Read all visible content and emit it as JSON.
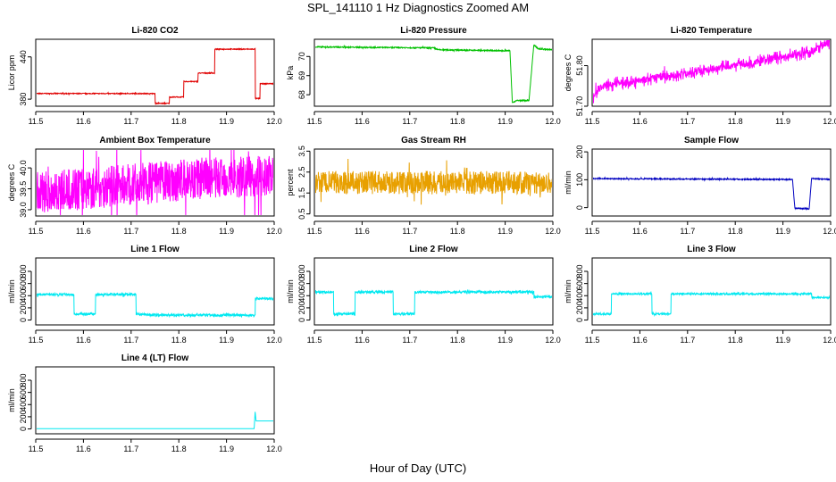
{
  "page": {
    "title": "SPL_141110  1 Hz Diagnostics Zoomed AM",
    "xlabel": "Hour of Day (UTC)"
  },
  "chart_data": [
    {
      "type": "line",
      "title": "Li-820 CO2",
      "ylabel": "Licor ppm",
      "xlim": [
        11.5,
        12.0
      ],
      "ylim": [
        370,
        465
      ],
      "x_ticks": [
        "11.5",
        "11.6",
        "11.7",
        "11.8",
        "11.9",
        "12.0"
      ],
      "y_ticks": [
        {
          "v": 380,
          "t": "380"
        },
        {
          "v": 440,
          "t": "440"
        }
      ],
      "color": "#e00000",
      "noise": 0.6,
      "series": [
        {
          "x": [
            11.5,
            11.75,
            11.75,
            11.78,
            11.78,
            11.81,
            11.81,
            11.84,
            11.84,
            11.875,
            11.875,
            11.96,
            11.96,
            11.97,
            11.97,
            12.0
          ],
          "y": [
            388,
            388,
            374,
            374,
            383,
            383,
            405,
            405,
            417,
            417,
            451,
            451,
            381,
            381,
            402,
            402
          ]
        }
      ]
    },
    {
      "type": "line",
      "title": "Li-820 Pressure",
      "ylabel": "kPa",
      "xlim": [
        11.5,
        12.0
      ],
      "ylim": [
        67.4,
        70.9
      ],
      "x_ticks": [
        "11.5",
        "11.6",
        "11.7",
        "11.8",
        "11.9",
        "12.0"
      ],
      "y_ticks": [
        {
          "v": 68,
          "t": "68"
        },
        {
          "v": 69,
          "t": "69"
        },
        {
          "v": 70,
          "t": "70"
        }
      ],
      "color": "#00c000",
      "noise": 0.03,
      "series": [
        {
          "x": [
            11.5,
            11.75,
            11.76,
            11.91,
            11.915,
            11.925,
            11.95,
            11.96,
            11.97,
            12.0
          ],
          "y": [
            70.5,
            70.45,
            70.35,
            70.3,
            67.6,
            67.7,
            67.7,
            70.6,
            70.4,
            70.35
          ]
        }
      ]
    },
    {
      "type": "line",
      "title": "Li-820 Temperature",
      "ylabel": "degrees C",
      "xlim": [
        11.5,
        12.0
      ],
      "ylim": [
        51.7,
        51.865
      ],
      "x_ticks": [
        "11.5",
        "11.6",
        "11.7",
        "11.8",
        "11.9",
        "12.0"
      ],
      "y_ticks": [
        {
          "v": 51.7,
          "t": "51.70"
        },
        {
          "v": 51.8,
          "t": "51.80"
        }
      ],
      "color": "#ff00ff",
      "noise": 0.008,
      "step": true,
      "series": [
        {
          "x": [
            11.5,
            11.52,
            11.63,
            11.75,
            11.87,
            11.96,
            12.0
          ],
          "y": [
            51.72,
            51.75,
            51.77,
            51.79,
            51.815,
            51.835,
            51.86
          ]
        }
      ]
    },
    {
      "type": "line",
      "title": "Ambient Box Temperature",
      "ylabel": "degrees C",
      "xlim": [
        11.5,
        12.0
      ],
      "ylim": [
        38.85,
        40.45
      ],
      "x_ticks": [
        "11.5",
        "11.6",
        "11.7",
        "11.8",
        "11.9",
        "12.0"
      ],
      "y_ticks": [
        {
          "v": 39.0,
          "t": "39.0"
        },
        {
          "v": 39.5,
          "t": "39.5"
        },
        {
          "v": 40.0,
          "t": "40.0"
        }
      ],
      "color": "#ff00ff",
      "noise": 0.5,
      "series": [
        {
          "x": [
            11.5,
            11.7,
            11.85,
            12.0
          ],
          "y": [
            39.4,
            39.6,
            39.75,
            39.8
          ]
        }
      ]
    },
    {
      "type": "line",
      "title": "Gas Stream RH",
      "ylabel": "percent",
      "xlim": [
        11.5,
        12.0
      ],
      "ylim": [
        0.4,
        3.6
      ],
      "x_ticks": [
        "11.5",
        "11.6",
        "11.7",
        "11.8",
        "11.9",
        "12.0"
      ],
      "y_ticks": [
        {
          "v": 0.5,
          "t": "0.5"
        },
        {
          "v": 1.5,
          "t": "1.5"
        },
        {
          "v": 2.5,
          "t": "2.5"
        },
        {
          "v": 3.5,
          "t": "3.5"
        }
      ],
      "color": "#e8a000",
      "noise": 0.55,
      "series": [
        {
          "x": [
            11.5,
            12.0
          ],
          "y": [
            2.0,
            2.0
          ]
        }
      ]
    },
    {
      "type": "line",
      "title": "Sample Flow",
      "ylabel": "ml/min",
      "xlim": [
        11.5,
        12.0
      ],
      "ylim": [
        -30,
        210
      ],
      "x_ticks": [
        "11.5",
        "11.6",
        "11.7",
        "11.8",
        "11.9",
        "12.0"
      ],
      "y_ticks": [
        {
          "v": 0,
          "t": "0"
        },
        {
          "v": 100,
          "t": "100"
        },
        {
          "v": 200,
          "t": "200"
        }
      ],
      "color": "#0000c0",
      "noise": 2,
      "series": [
        {
          "x": [
            11.5,
            11.92,
            11.925,
            11.955,
            11.96,
            12.0
          ],
          "y": [
            104,
            101,
            -2,
            -4,
            104,
            101
          ]
        }
      ]
    },
    {
      "type": "line",
      "title": "Line 1 Flow",
      "ylabel": "ml/min",
      "xlim": [
        11.5,
        12.0
      ],
      "ylim": [
        -80,
        1020
      ],
      "x_ticks": [
        "11.5",
        "11.6",
        "11.7",
        "11.8",
        "11.9",
        "12.0"
      ],
      "y_ticks": [
        {
          "v": 0,
          "t": "0"
        },
        {
          "v": 200,
          "t": "200"
        },
        {
          "v": 400,
          "t": "400"
        },
        {
          "v": 600,
          "t": "600"
        },
        {
          "v": 800,
          "t": "800"
        }
      ],
      "color": "#00e8f0",
      "noise": 20,
      "series": [
        {
          "x": [
            11.5,
            11.58,
            11.58,
            11.625,
            11.625,
            11.71,
            11.71,
            11.75,
            11.96,
            11.96,
            12.0
          ],
          "y": [
            420,
            420,
            100,
            100,
            420,
            420,
            100,
            80,
            80,
            350,
            360
          ]
        }
      ]
    },
    {
      "type": "line",
      "title": "Line 2 Flow",
      "ylabel": "ml/min",
      "xlim": [
        11.5,
        12.0
      ],
      "ylim": [
        -80,
        1020
      ],
      "x_ticks": [
        "11.5",
        "11.6",
        "11.7",
        "11.8",
        "11.9",
        "12.0"
      ],
      "y_ticks": [
        {
          "v": 0,
          "t": "0"
        },
        {
          "v": 200,
          "t": "200"
        },
        {
          "v": 400,
          "t": "400"
        },
        {
          "v": 600,
          "t": "600"
        },
        {
          "v": 800,
          "t": "800"
        }
      ],
      "color": "#00e8f0",
      "noise": 20,
      "series": [
        {
          "x": [
            11.5,
            11.54,
            11.54,
            11.585,
            11.585,
            11.665,
            11.665,
            11.71,
            11.71,
            11.96,
            11.96,
            12.0
          ],
          "y": [
            460,
            460,
            100,
            100,
            460,
            460,
            100,
            100,
            460,
            460,
            380,
            380
          ]
        }
      ]
    },
    {
      "type": "line",
      "title": "Line 3 Flow",
      "ylabel": "ml/min",
      "xlim": [
        11.5,
        12.0
      ],
      "ylim": [
        -80,
        1020
      ],
      "x_ticks": [
        "11.5",
        "11.6",
        "11.7",
        "11.8",
        "11.9",
        "12.0"
      ],
      "y_ticks": [
        {
          "v": 0,
          "t": "0"
        },
        {
          "v": 200,
          "t": "200"
        },
        {
          "v": 400,
          "t": "400"
        },
        {
          "v": 600,
          "t": "600"
        },
        {
          "v": 800,
          "t": "800"
        }
      ],
      "color": "#00e8f0",
      "noise": 15,
      "series": [
        {
          "x": [
            11.5,
            11.54,
            11.54,
            11.625,
            11.625,
            11.665,
            11.665,
            11.96,
            11.96,
            12.0
          ],
          "y": [
            100,
            100,
            430,
            430,
            100,
            100,
            430,
            430,
            370,
            370
          ]
        }
      ]
    },
    {
      "type": "line",
      "title": "Line 4 (LT) Flow",
      "ylabel": "ml/min",
      "xlim": [
        11.5,
        12.0
      ],
      "ylim": [
        -80,
        1020
      ],
      "x_ticks": [
        "11.5",
        "11.6",
        "11.7",
        "11.8",
        "11.9",
        "12.0"
      ],
      "y_ticks": [
        {
          "v": 0,
          "t": "0"
        },
        {
          "v": 200,
          "t": "200"
        },
        {
          "v": 400,
          "t": "400"
        },
        {
          "v": 600,
          "t": "600"
        },
        {
          "v": 800,
          "t": "800"
        }
      ],
      "color": "#00e8f0",
      "noise": 0,
      "series": [
        {
          "x": [
            11.5,
            11.958,
            11.96,
            11.962,
            11.97,
            12.0
          ],
          "y": [
            5,
            5,
            280,
            130,
            130,
            130
          ]
        }
      ]
    }
  ]
}
